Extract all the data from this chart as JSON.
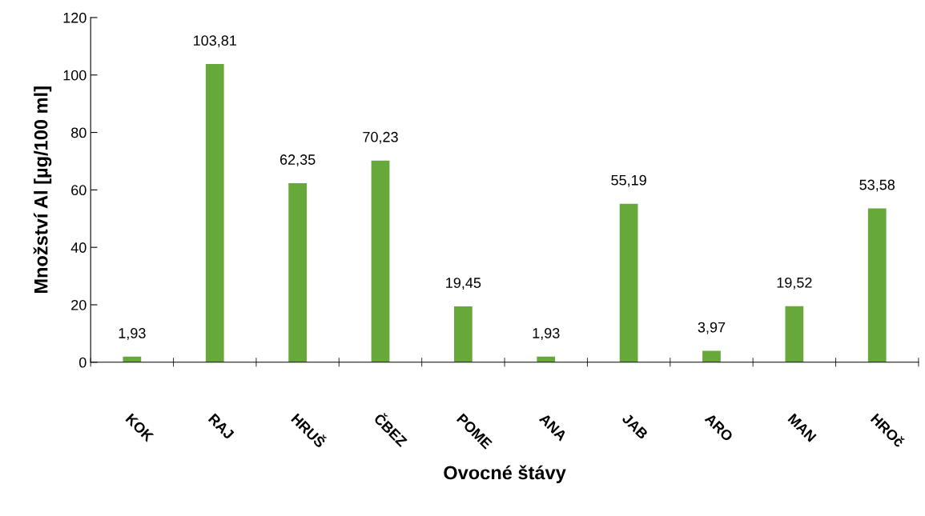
{
  "chart_data": {
    "type": "bar",
    "xlabel": "Ovocné štávy",
    "ylabel": "Množství Al [µg/100 ml]",
    "categories": [
      "KOK",
      "RAJ",
      "HRUŠ",
      "ČBEZ",
      "POME",
      "ANA",
      "JAB",
      "ARO",
      "MAN",
      "HROč"
    ],
    "values": [
      1.93,
      103.81,
      62.35,
      70.23,
      19.45,
      1.93,
      55.19,
      3.97,
      19.52,
      53.58
    ],
    "value_labels": [
      "1,93",
      "103,81",
      "62,35",
      "70,23",
      "19,45",
      "1,93",
      "55,19",
      "3,97",
      "19,52",
      "53,58"
    ],
    "color": "#66a83a",
    "ylim": [
      0,
      120
    ],
    "yticks": [
      0,
      20,
      40,
      60,
      80,
      100,
      120
    ],
    "grid": false,
    "legend": false
  }
}
